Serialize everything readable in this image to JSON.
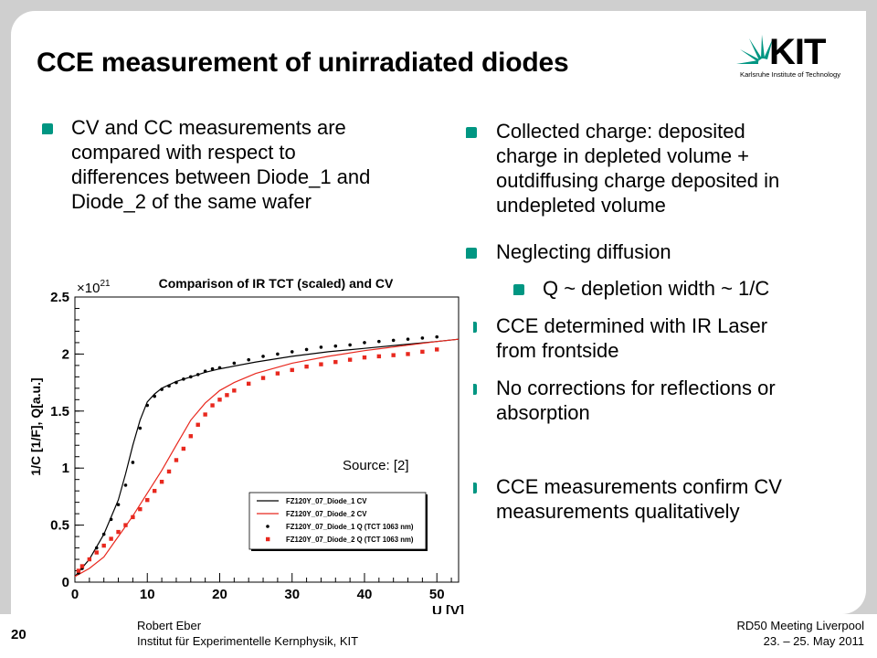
{
  "slide": {
    "title": "CCE measurement of unirradiated diodes",
    "logo": {
      "text": "KIT",
      "subtitle": "Karlsruhe Institute of Technology"
    },
    "left_bullets": [
      {
        "lines": [
          "CV and CC measurements are",
          "compared with respect to",
          "differences between Diode_1 and",
          "Diode_2 of the same wafer"
        ]
      }
    ],
    "right_bullets": [
      {
        "lines": [
          "Collected charge: deposited",
          "charge in depleted volume +",
          "outdiffusing charge deposited in",
          "undepleted volume"
        ],
        "level": 1
      },
      {
        "lines": [
          "Neglecting diffusion"
        ],
        "level": 1
      },
      {
        "lines": [
          "Q ~ depletion width ~ 1/C"
        ],
        "level": 2
      },
      {
        "lines": [
          "CCE determined with IR Laser",
          "from frontside"
        ],
        "level": 1
      },
      {
        "lines": [
          "No corrections for reflections or",
          "absorption"
        ],
        "level": 1
      },
      {
        "lines": [
          "CCE measurements confirm CV",
          "measurements qualitatively"
        ],
        "level": 1
      }
    ],
    "source": "Source: [2]",
    "accent_color": "#009682"
  },
  "footer": {
    "page": "20",
    "author": "Robert Eber",
    "institute": "Institut für Experimentelle Kernphysik, KIT",
    "meeting": "RD50 Meeting Liverpool",
    "date": "23. – 25. May 2011"
  },
  "chart_data": {
    "type": "line",
    "title": "Comparison of IR TCT (scaled) and CV",
    "xlabel": "U [V]",
    "ylabel": "1/C [1/F], Q[a.u.]",
    "y_multiplier": "×10^21",
    "xlim": [
      0,
      53
    ],
    "ylim": [
      0,
      2.5
    ],
    "x_ticks": [
      "0",
      "10",
      "20",
      "30",
      "40",
      "50"
    ],
    "y_ticks": [
      "0",
      "0.5",
      "1",
      "1.5",
      "2",
      "2.5"
    ],
    "grid": false,
    "legend_position": "bottom-right",
    "series": [
      {
        "name": "FZ120Y_07_Diode_1 CV",
        "style": "line",
        "color": "#000000",
        "x": [
          0,
          2,
          4,
          6,
          7,
          8,
          9,
          10,
          11,
          12,
          14,
          16,
          18,
          20,
          25,
          30,
          35,
          40,
          45,
          50,
          53
        ],
        "y": [
          0.05,
          0.2,
          0.42,
          0.72,
          0.95,
          1.2,
          1.42,
          1.58,
          1.65,
          1.7,
          1.76,
          1.8,
          1.84,
          1.87,
          1.93,
          1.98,
          2.02,
          2.05,
          2.08,
          2.11,
          2.13
        ]
      },
      {
        "name": "FZ120Y_07_Diode_2 CV",
        "style": "line",
        "color": "#e8281e",
        "x": [
          0,
          2,
          4,
          6,
          8,
          10,
          12,
          14,
          16,
          18,
          20,
          22,
          25,
          30,
          35,
          40,
          45,
          50,
          53
        ],
        "y": [
          0.05,
          0.12,
          0.22,
          0.4,
          0.58,
          0.78,
          0.98,
          1.2,
          1.42,
          1.57,
          1.68,
          1.75,
          1.83,
          1.92,
          1.98,
          2.03,
          2.07,
          2.11,
          2.13
        ]
      },
      {
        "name": "FZ120Y_07_Diode_1 Q (TCT 1063 nm)",
        "style": "markers-dot",
        "color": "#000000",
        "x": [
          0.5,
          1,
          2,
          3,
          4,
          5,
          6,
          7,
          8,
          9,
          10,
          11,
          12,
          13,
          14,
          15,
          16,
          17,
          18,
          19,
          20,
          22,
          24,
          26,
          28,
          30,
          32,
          34,
          36,
          38,
          40,
          42,
          44,
          46,
          48,
          50
        ],
        "y": [
          0.08,
          0.12,
          0.2,
          0.3,
          0.42,
          0.55,
          0.68,
          0.85,
          1.05,
          1.35,
          1.55,
          1.63,
          1.69,
          1.72,
          1.75,
          1.78,
          1.8,
          1.82,
          1.85,
          1.87,
          1.88,
          1.92,
          1.95,
          1.98,
          2.0,
          2.02,
          2.04,
          2.06,
          2.07,
          2.08,
          2.1,
          2.11,
          2.12,
          2.13,
          2.14,
          2.15
        ]
      },
      {
        "name": "FZ120Y_07_Diode_2 Q (TCT 1063 nm)",
        "style": "markers-square",
        "color": "#e8281e",
        "x": [
          0.5,
          1,
          2,
          3,
          4,
          5,
          6,
          7,
          8,
          9,
          10,
          11,
          12,
          13,
          14,
          15,
          16,
          17,
          18,
          19,
          20,
          21,
          22,
          24,
          26,
          28,
          30,
          32,
          34,
          36,
          38,
          40,
          42,
          44,
          46,
          48,
          50
        ],
        "y": [
          0.1,
          0.14,
          0.2,
          0.26,
          0.32,
          0.38,
          0.44,
          0.5,
          0.57,
          0.64,
          0.72,
          0.8,
          0.88,
          0.97,
          1.07,
          1.17,
          1.28,
          1.38,
          1.47,
          1.55,
          1.6,
          1.64,
          1.68,
          1.74,
          1.79,
          1.83,
          1.86,
          1.89,
          1.91,
          1.93,
          1.95,
          1.97,
          1.98,
          1.99,
          2.0,
          2.02,
          2.04
        ]
      }
    ]
  }
}
